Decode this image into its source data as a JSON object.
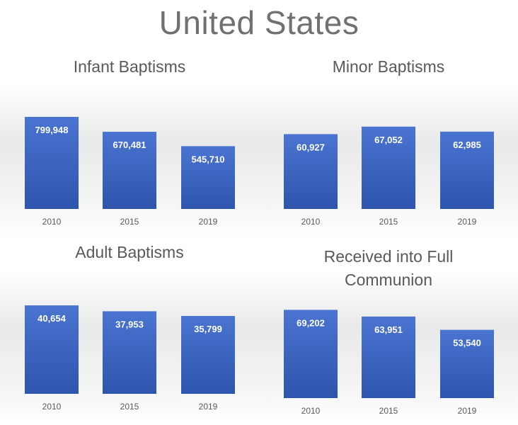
{
  "title": "United States",
  "chart_data": [
    {
      "type": "bar",
      "title": "Infant Baptisms",
      "categories": [
        "2010",
        "2015",
        "2019"
      ],
      "values": [
        799948,
        670481,
        545710
      ],
      "value_labels": [
        "799,948",
        "670,481",
        "545,710"
      ],
      "ylim": [
        0,
        800000
      ],
      "grid": false,
      "bar_color": "#3f66c2"
    },
    {
      "type": "bar",
      "title": "Minor Baptisms",
      "categories": [
        "2010",
        "2015",
        "2019"
      ],
      "values": [
        60927,
        67052,
        62985
      ],
      "value_labels": [
        "60,927",
        "67,052",
        "62,985"
      ],
      "ylim": [
        0,
        75000
      ],
      "grid": false,
      "bar_color": "#3f66c2"
    },
    {
      "type": "bar",
      "title": "Adult Baptisms",
      "categories": [
        "2010",
        "2015",
        "2019"
      ],
      "values": [
        40654,
        37953,
        35799
      ],
      "value_labels": [
        "40,654",
        "37,953",
        "35,799"
      ],
      "ylim": [
        0,
        42000
      ],
      "grid": false,
      "bar_color": "#3f66c2"
    },
    {
      "type": "bar",
      "title": "Received into Full Communion",
      "categories": [
        "2010",
        "2015",
        "2019"
      ],
      "values": [
        69202,
        63951,
        53540
      ],
      "value_labels": [
        "69,202",
        "63,951",
        "53,540"
      ],
      "ylim": [
        0,
        75000
      ],
      "grid": false,
      "bar_color": "#3f66c2"
    }
  ]
}
